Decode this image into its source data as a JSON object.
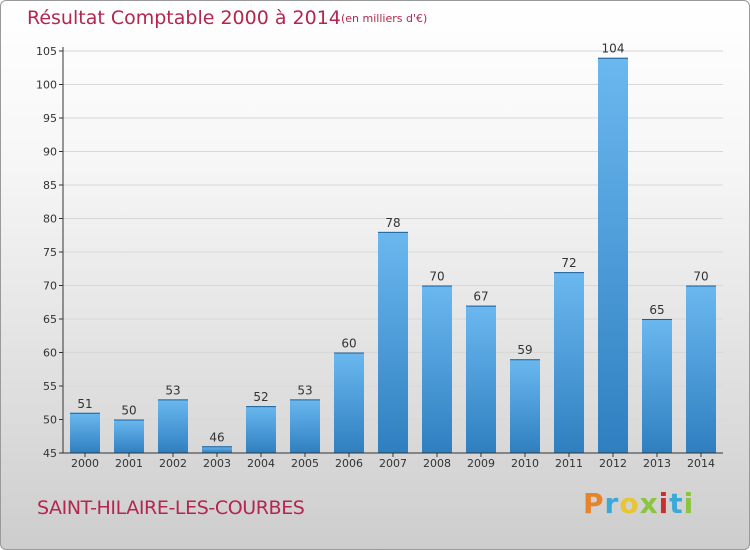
{
  "chart_data": {
    "type": "bar",
    "title": "Résultat Comptable 2000 à 2014",
    "subtitle": "(en milliers d'€)",
    "categories": [
      "2000",
      "2001",
      "2002",
      "2003",
      "2004",
      "2005",
      "2006",
      "2007",
      "2008",
      "2009",
      "2010",
      "2011",
      "2012",
      "2013",
      "2014"
    ],
    "values": [
      51,
      50,
      53,
      46,
      52,
      53,
      60,
      78,
      70,
      67,
      59,
      72,
      104,
      65,
      70
    ],
    "ylim": [
      45,
      105
    ],
    "yticks": [
      45,
      50,
      55,
      60,
      65,
      70,
      75,
      80,
      85,
      90,
      95,
      100,
      105
    ],
    "grid": true,
    "xlabel": "",
    "ylabel": "",
    "bar_color_light": "#6bb8f0",
    "bar_color_dark": "#2f7fc0"
  },
  "footer": {
    "commune": "SAINT-HILAIRE-LES-COURBES",
    "logo_text": "Proxiti",
    "logo_colors": [
      "#e8832a",
      "#3aa9d8",
      "#e8c531",
      "#8bc53f",
      "#c9302c",
      "#3aa9d8",
      "#8bc53f"
    ]
  },
  "colors": {
    "title": "#b4264e",
    "grid": "#d8d8d8",
    "axis": "#333333"
  }
}
